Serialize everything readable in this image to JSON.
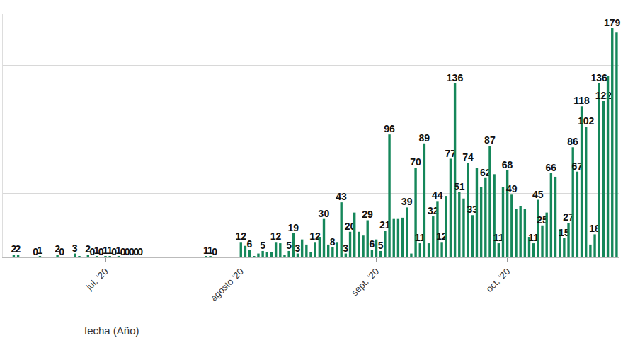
{
  "chart_data": {
    "type": "bar",
    "x_label": "fecha (Año)",
    "categories": [
      null,
      null,
      null,
      null,
      null,
      null,
      null,
      null,
      null,
      null,
      null,
      null,
      null,
      null,
      null,
      null,
      null,
      null,
      null,
      null,
      null,
      null,
      null,
      "jul. '20",
      null,
      null,
      null,
      null,
      null,
      null,
      null,
      null,
      null,
      null,
      null,
      null,
      null,
      null,
      null,
      null,
      null,
      null,
      null,
      null,
      null,
      null,
      null,
      null,
      null,
      null,
      null,
      null,
      null,
      null,
      "agosto '20",
      null,
      null,
      null,
      null,
      null,
      null,
      null,
      null,
      null,
      null,
      null,
      null,
      null,
      null,
      null,
      null,
      null,
      null,
      null,
      null,
      null,
      null,
      null,
      null,
      null,
      null,
      null,
      null,
      null,
      null,
      "sept. '20",
      null,
      null,
      null,
      null,
      null,
      null,
      null,
      null,
      null,
      null,
      null,
      null,
      null,
      null,
      null,
      null,
      null,
      null,
      null,
      null,
      null,
      null,
      null,
      null,
      null,
      null,
      null,
      null,
      null,
      "oct. '20",
      null,
      null,
      null,
      null,
      null,
      null,
      null,
      null,
      null,
      null,
      null,
      null,
      null,
      null,
      null,
      null,
      null,
      null,
      null,
      null,
      null,
      null,
      null,
      null,
      null
    ],
    "values": [
      0,
      0,
      2,
      2,
      0,
      0,
      0,
      0,
      1,
      0,
      0,
      0,
      2,
      0,
      0,
      0,
      3,
      1,
      0,
      2,
      0,
      1,
      0,
      1,
      1,
      0,
      1,
      0,
      0,
      0,
      0,
      0,
      0,
      0,
      0,
      0,
      0,
      0,
      0,
      0,
      0,
      0,
      0,
      0,
      0,
      0,
      1,
      1,
      0,
      0,
      0,
      0,
      0,
      0,
      12,
      9,
      6,
      1,
      3,
      5,
      4,
      4,
      12,
      11,
      2,
      5,
      19,
      3,
      14,
      10,
      4,
      12,
      16,
      30,
      10,
      8,
      12,
      43,
      3,
      20,
      35,
      20,
      17,
      29,
      6,
      14,
      5,
      21,
      96,
      30,
      30,
      31,
      39,
      3,
      70,
      11,
      89,
      11,
      32,
      44,
      12,
      48,
      77,
      136,
      51,
      46,
      74,
      33,
      70,
      55,
      62,
      87,
      65,
      11,
      55,
      68,
      49,
      38,
      40,
      38,
      16,
      11,
      45,
      25,
      35,
      66,
      63,
      22,
      15,
      27,
      86,
      67,
      118,
      102,
      10,
      18,
      136,
      122,
      142,
      179,
      176
    ],
    "value_labels": [
      null,
      null,
      "2",
      "2",
      null,
      null,
      null,
      "0",
      "1",
      null,
      null,
      null,
      "2",
      "0",
      null,
      null,
      "3",
      null,
      null,
      "2",
      "0",
      "1",
      "0",
      "1",
      "1",
      "0",
      "1",
      "0",
      "0",
      "0",
      "0",
      "0",
      null,
      null,
      null,
      null,
      null,
      null,
      null,
      null,
      null,
      null,
      null,
      null,
      null,
      null,
      "1",
      "1",
      "0",
      null,
      null,
      null,
      null,
      null,
      "12",
      null,
      "6",
      null,
      null,
      "5",
      null,
      null,
      "12",
      null,
      null,
      "5",
      "19",
      "3",
      null,
      null,
      null,
      "12",
      null,
      "30",
      null,
      "8",
      null,
      "43",
      "3",
      "20",
      null,
      null,
      null,
      "29",
      "6",
      null,
      "5",
      "21",
      "96",
      null,
      null,
      null,
      "39",
      null,
      "70",
      "11",
      "89",
      null,
      "32",
      "44",
      "12",
      null,
      "77",
      "136",
      "51",
      null,
      "74",
      "33",
      null,
      null,
      "62",
      "87",
      null,
      "11",
      null,
      "68",
      "49",
      null,
      null,
      null,
      null,
      "11",
      "45",
      "25",
      null,
      "66",
      null,
      null,
      "15",
      "27",
      "86",
      "67",
      "118",
      "102",
      null,
      "18",
      "136",
      "122",
      null,
      "179",
      null
    ],
    "data_labels": true,
    "color": "#15875a",
    "ylim": [
      0,
      190
    ],
    "yticks": [
      0,
      50,
      100,
      150
    ],
    "grid": true,
    "tick_labels": "x"
  }
}
